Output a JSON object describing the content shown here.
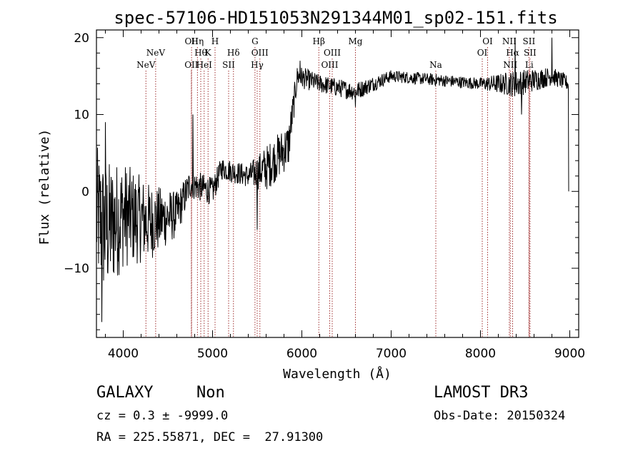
{
  "chart_data": {
    "type": "line",
    "title": "spec-57106-HD151053N291344M01_sp02-151.fits",
    "xlabel": "Wavelength (Å)",
    "ylabel": "Flux (relative)",
    "xlim": [
      3700,
      9100
    ],
    "ylim": [
      -19,
      21
    ],
    "xticks": [
      4000,
      5000,
      6000,
      7000,
      8000,
      9000
    ],
    "yticks": [
      -10,
      0,
      10,
      20
    ],
    "series": [
      {
        "name": "spectrum",
        "color": "#000000",
        "anchors": [
          {
            "x": 3700,
            "y": -3,
            "noise": 9
          },
          {
            "x": 3800,
            "y": -5,
            "noise": 9
          },
          {
            "x": 4000,
            "y": -3,
            "noise": 7
          },
          {
            "x": 4300,
            "y": -4,
            "noise": 5
          },
          {
            "x": 4600,
            "y": -3,
            "noise": 3
          },
          {
            "x": 4750,
            "y": 1,
            "noise": 2
          },
          {
            "x": 5000,
            "y": 0,
            "noise": 1.8
          },
          {
            "x": 5100,
            "y": 3,
            "noise": 1.5
          },
          {
            "x": 5400,
            "y": 2,
            "noise": 1.5
          },
          {
            "x": 5600,
            "y": 3,
            "noise": 3
          },
          {
            "x": 5850,
            "y": 6,
            "noise": 3
          },
          {
            "x": 5950,
            "y": 15,
            "noise": 1.5
          },
          {
            "x": 6200,
            "y": 14,
            "noise": 1.2
          },
          {
            "x": 6600,
            "y": 13,
            "noise": 1.2
          },
          {
            "x": 7000,
            "y": 15,
            "noise": 0.8
          },
          {
            "x": 7500,
            "y": 14.5,
            "noise": 0.8
          },
          {
            "x": 8000,
            "y": 14,
            "noise": 0.8
          },
          {
            "x": 8400,
            "y": 14,
            "noise": 1.8
          },
          {
            "x": 8800,
            "y": 15,
            "noise": 1.2
          },
          {
            "x": 8990,
            "y": 14,
            "noise": 1
          }
        ],
        "features": [
          {
            "x": 3760,
            "y": -17
          },
          {
            "x": 3800,
            "y": 9
          },
          {
            "x": 4780,
            "y": 10
          },
          {
            "x": 5500,
            "y": -5
          },
          {
            "x": 5980,
            "y": 17
          },
          {
            "x": 6600,
            "y": 11
          },
          {
            "x": 8390,
            "y": 20
          },
          {
            "x": 8460,
            "y": 10
          },
          {
            "x": 8800,
            "y": 20
          },
          {
            "x": 9000,
            "y": 0
          }
        ]
      }
    ],
    "lines": [
      {
        "x": 4254,
        "label": "NeV",
        "row": 2
      },
      {
        "x": 4363,
        "label": "NeV",
        "row": 1
      },
      {
        "x": 4765,
        "label": "OII",
        "row": 0
      },
      {
        "x": 4763,
        "label": "OII",
        "row": 2
      },
      {
        "x": 4831,
        "label": "Hη",
        "row": 0
      },
      {
        "x": 4868,
        "label": "Hθ",
        "row": 1
      },
      {
        "x": 4906,
        "label": "HeI",
        "row": 2
      },
      {
        "x": 4950,
        "label": "K",
        "row": 1
      },
      {
        "x": 5028,
        "label": "H",
        "row": 0
      },
      {
        "x": 5180,
        "label": "SII",
        "row": 2
      },
      {
        "x": 5234,
        "label": "Hδ",
        "row": 1
      },
      {
        "x": 5475,
        "label": "G",
        "row": 0
      },
      {
        "x": 5500,
        "label": "Hγ",
        "row": 2
      },
      {
        "x": 5530,
        "label": "OIII",
        "row": 1
      },
      {
        "x": 6190,
        "label": "Hβ",
        "row": 0
      },
      {
        "x": 6340,
        "label": "OIII",
        "row": 1
      },
      {
        "x": 6312,
        "label": "OIII",
        "row": 2
      },
      {
        "x": 6600,
        "label": "Mg",
        "row": 0
      },
      {
        "x": 7500,
        "label": "Na",
        "row": 2
      },
      {
        "x": 8020,
        "label": "OI",
        "row": 1
      },
      {
        "x": 8080,
        "label": "OI",
        "row": 0
      },
      {
        "x": 8323,
        "label": "NII",
        "row": 0
      },
      {
        "x": 8360,
        "label": "Hα",
        "row": 1
      },
      {
        "x": 8334,
        "label": "NII",
        "row": 2
      },
      {
        "x": 8543,
        "label": "SII",
        "row": 0
      },
      {
        "x": 8555,
        "label": "SII",
        "row": 1
      },
      {
        "x": 8546,
        "label": "Li",
        "row": 2
      }
    ],
    "lines_color": "#a03030"
  },
  "footer": {
    "class_label": "GALAXY",
    "subclass_label": "Non",
    "survey": "LAMOST DR3",
    "cz": "cz = 0.3 ± -9999.0",
    "obs_date": "Obs-Date: 20150324",
    "coords": "RA = 225.55871, DEC =  27.91300"
  }
}
